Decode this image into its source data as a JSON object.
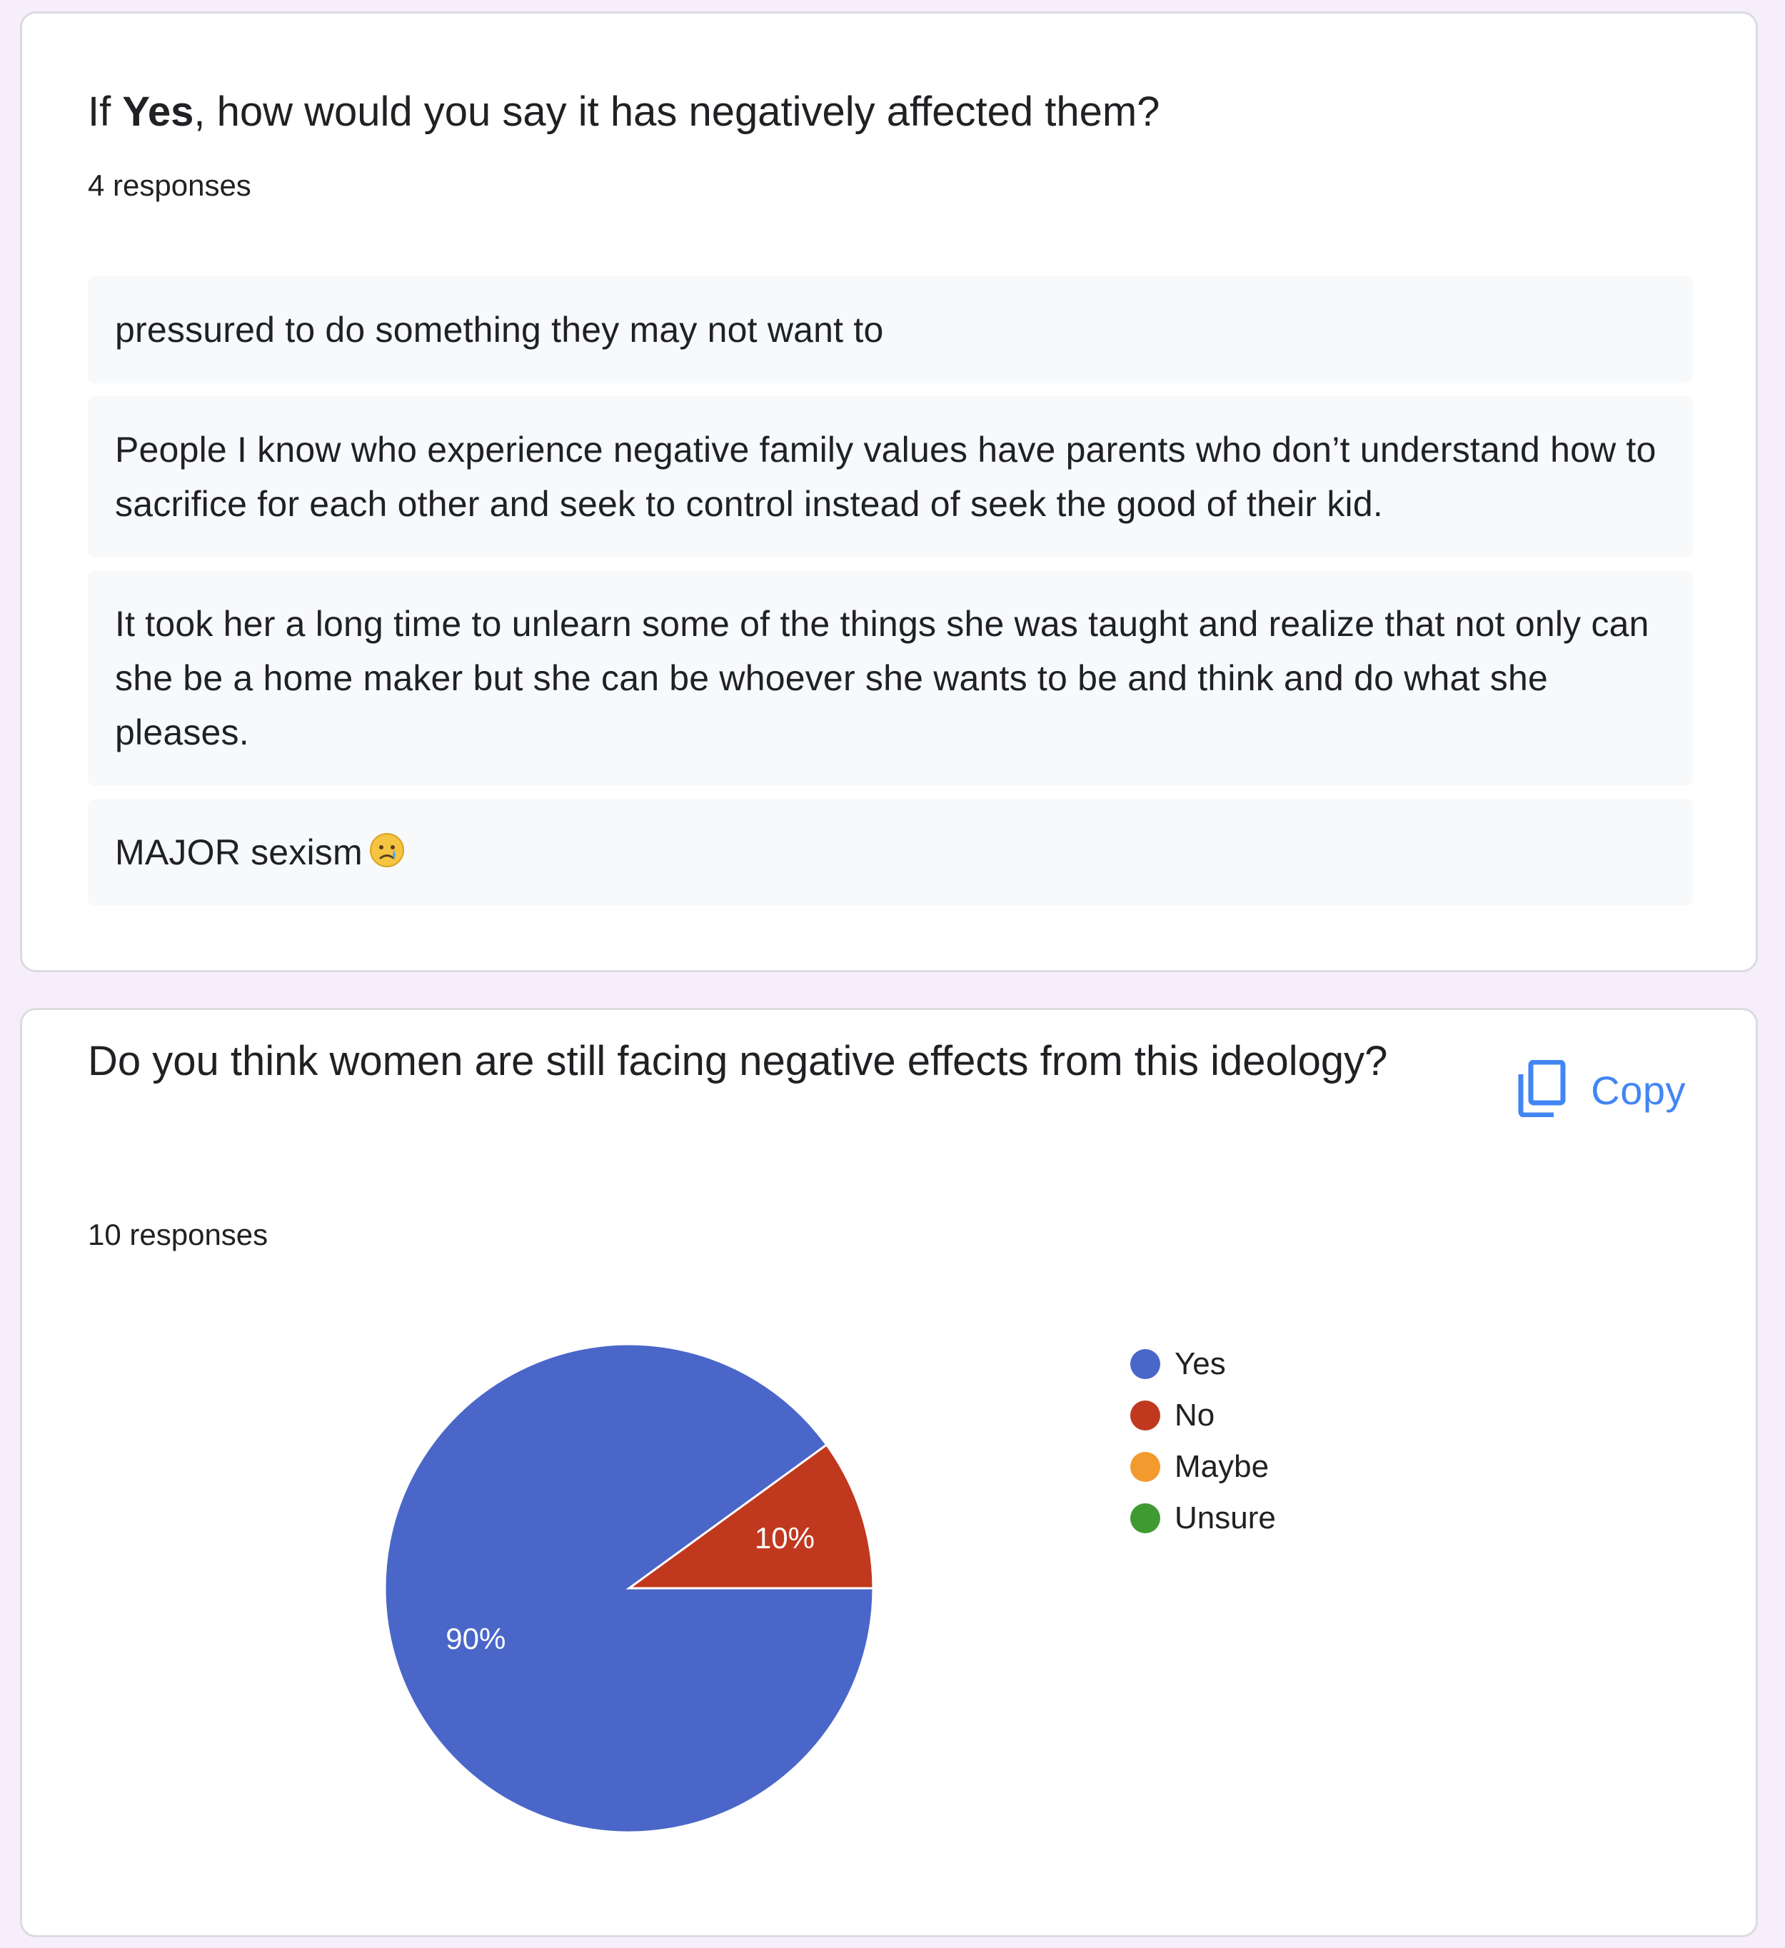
{
  "card1": {
    "title_prefix": "If ",
    "title_bold": "Yes",
    "title_suffix": ", how would you say it has negatively affected them?",
    "responses": "4 responses",
    "answers": [
      "pressured to do something they may not want to",
      "People I know who experience negative family values have parents who don’t understand how to sacrifice for each other and seek to control instead of seek the good of their kid.",
      "It took her a long time to unlearn some of the things she was taught and realize that not only can she be a home maker but she can be whoever she wants to be and think and do what she pleases.",
      "MAJOR sexism"
    ],
    "answer4_emoji": "crying-face-emoji"
  },
  "card2": {
    "title": "Do you think women are still facing negative effects from this ideology?",
    "responses": "10 responses",
    "copy_label": "Copy",
    "copy_icon": "copy-icon",
    "accent": "#4285f4"
  },
  "chart_data": {
    "type": "pie",
    "labels": [
      "Yes",
      "No",
      "Maybe",
      "Unsure"
    ],
    "values": [
      90,
      10,
      0,
      0
    ],
    "value_labels": [
      "90%",
      "10%",
      "",
      ""
    ],
    "colors": [
      "#4a66c8",
      "#c0391e",
      "#f29a2e",
      "#3f9a32"
    ],
    "legend_position": "right"
  }
}
